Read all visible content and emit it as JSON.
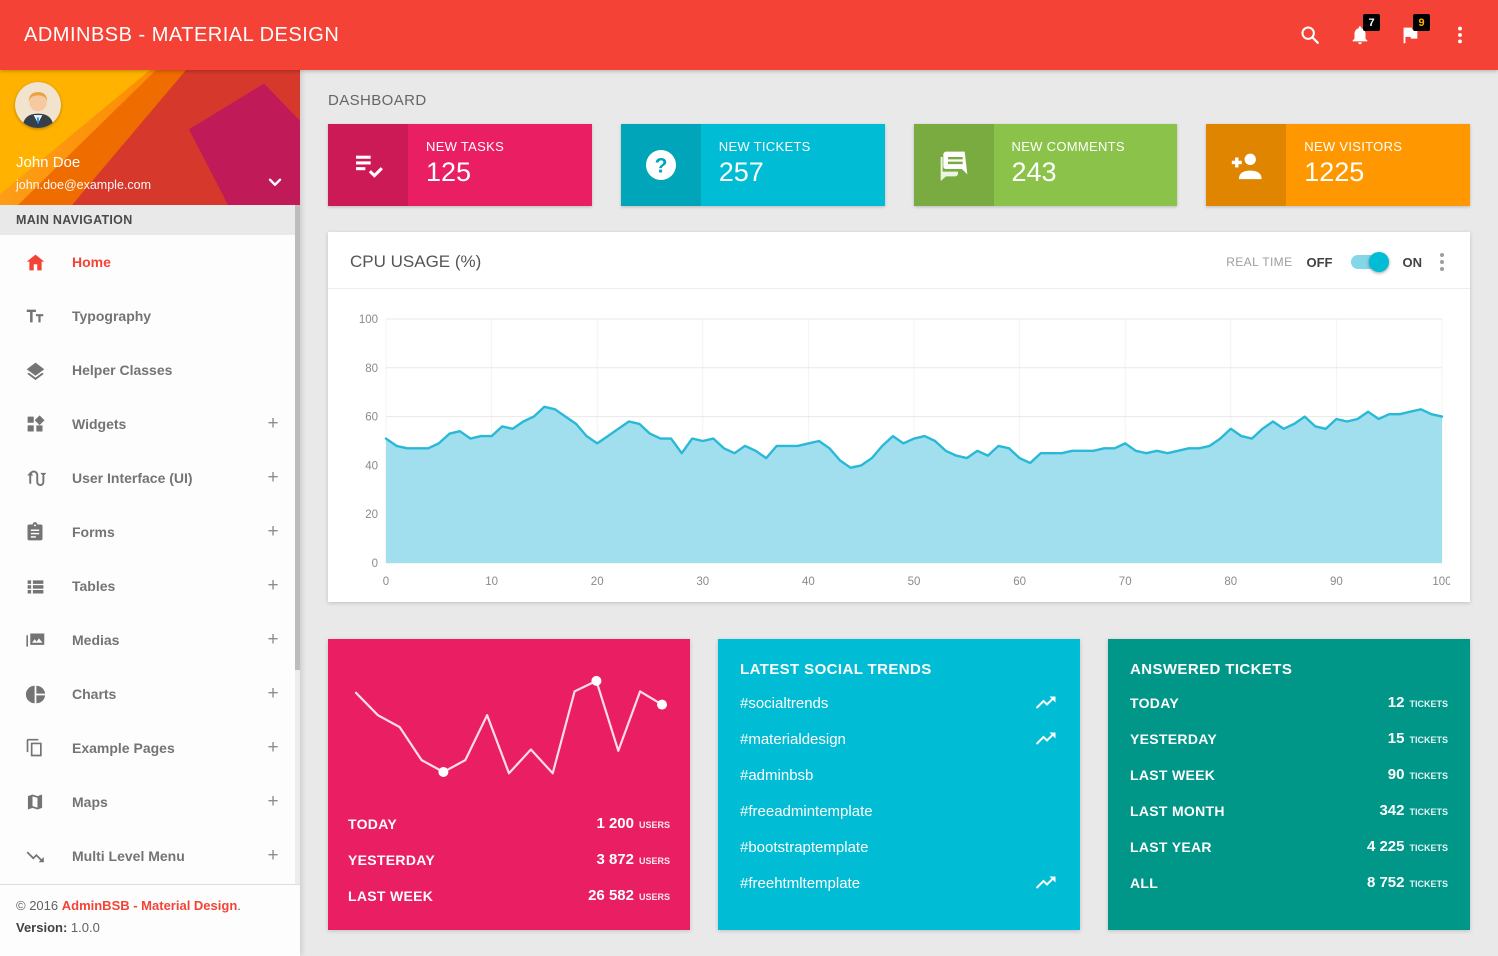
{
  "colors": {
    "header_red": "#F44336",
    "pink": "#E91E63",
    "cyan": "#00BCD4",
    "green": "#8BC34A",
    "orange": "#FF9800",
    "teal": "#009688",
    "chart_line": "#29B9D6",
    "chart_fill": "#A2DFEE",
    "badge_bg": "#000000",
    "badge_amber_text": "#FFB300"
  },
  "header": {
    "title": "ADMINBSB - MATERIAL DESIGN",
    "notifications_count": "7",
    "flags_count": "9",
    "icons": [
      "search-icon",
      "bell-icon",
      "flag-icon",
      "more-vert-icon"
    ]
  },
  "sidebar": {
    "user": {
      "name": "John Doe",
      "email": "john.doe@example.com"
    },
    "nav_header": "MAIN NAVIGATION",
    "plus": "+",
    "items": [
      {
        "label": "Home",
        "icon": "home-icon",
        "active": true,
        "expandable": false
      },
      {
        "label": "Typography",
        "icon": "typography-icon",
        "active": false,
        "expandable": false
      },
      {
        "label": "Helper Classes",
        "icon": "layers-icon",
        "active": false,
        "expandable": false
      },
      {
        "label": "Widgets",
        "icon": "widgets-icon",
        "active": false,
        "expandable": true
      },
      {
        "label": "User Interface (UI)",
        "icon": "swap-calls-icon",
        "active": false,
        "expandable": true
      },
      {
        "label": "Forms",
        "icon": "assignment-icon",
        "active": false,
        "expandable": true
      },
      {
        "label": "Tables",
        "icon": "list-icon",
        "active": false,
        "expandable": true
      },
      {
        "label": "Medias",
        "icon": "media-icon",
        "active": false,
        "expandable": true
      },
      {
        "label": "Charts",
        "icon": "pie-chart-icon",
        "active": false,
        "expandable": true
      },
      {
        "label": "Example Pages",
        "icon": "pages-icon",
        "active": false,
        "expandable": true
      },
      {
        "label": "Maps",
        "icon": "map-icon",
        "active": false,
        "expandable": true
      },
      {
        "label": "Multi Level Menu",
        "icon": "trending-down-icon",
        "active": false,
        "expandable": true
      }
    ],
    "footer": {
      "copyright_prefix": "© 2016 ",
      "copyright_link": "AdminBSB - Material Design",
      "copyright_suffix": ".",
      "version_label": "Version: ",
      "version_value": "1.0.0"
    }
  },
  "main": {
    "page_title": "DASHBOARD",
    "info_boxes": [
      {
        "label": "NEW TASKS",
        "value": "125",
        "color": "#E91E63",
        "icon": "playlist-check-icon"
      },
      {
        "label": "NEW TICKETS",
        "value": "257",
        "color": "#00BCD4",
        "icon": "help-icon"
      },
      {
        "label": "NEW COMMENTS",
        "value": "243",
        "color": "#8BC34A",
        "icon": "forum-icon"
      },
      {
        "label": "NEW VISITORS",
        "value": "1225",
        "color": "#FF9800",
        "icon": "person-add-icon"
      }
    ],
    "cpu_card": {
      "title": "CPU USAGE (%)",
      "realtime_label": "REAL TIME",
      "off_label": "OFF",
      "on_label": "ON",
      "toggle_state": "on"
    },
    "users_card": {
      "rows": [
        {
          "label": "TODAY",
          "value": "1 200",
          "unit": "USERS"
        },
        {
          "label": "YESTERDAY",
          "value": "3 872",
          "unit": "USERS"
        },
        {
          "label": "LAST WEEK",
          "value": "26 582",
          "unit": "USERS"
        }
      ]
    },
    "trends_card": {
      "title": "LATEST SOCIAL TRENDS",
      "items": [
        {
          "tag": "#socialtrends",
          "trending": true
        },
        {
          "tag": "#materialdesign",
          "trending": true
        },
        {
          "tag": "#adminbsb",
          "trending": false
        },
        {
          "tag": "#freeadmintemplate",
          "trending": false
        },
        {
          "tag": "#bootstraptemplate",
          "trending": false
        },
        {
          "tag": "#freehtmltemplate",
          "trending": true
        }
      ]
    },
    "tickets_card": {
      "title": "ANSWERED TICKETS",
      "rows": [
        {
          "label": "TODAY",
          "value": "12",
          "unit": "TICKETS"
        },
        {
          "label": "YESTERDAY",
          "value": "15",
          "unit": "TICKETS"
        },
        {
          "label": "LAST WEEK",
          "value": "90",
          "unit": "TICKETS"
        },
        {
          "label": "LAST MONTH",
          "value": "342",
          "unit": "TICKETS"
        },
        {
          "label": "LAST YEAR",
          "value": "4 225",
          "unit": "TICKETS"
        },
        {
          "label": "ALL",
          "value": "8 752",
          "unit": "TICKETS"
        }
      ]
    }
  },
  "chart_data": [
    {
      "type": "area",
      "title": "CPU USAGE (%)",
      "xlabel": "",
      "ylabel": "",
      "xlim": [
        0,
        100
      ],
      "ylim": [
        0,
        100
      ],
      "x_ticks": [
        0,
        10,
        20,
        30,
        40,
        50,
        60,
        70,
        80,
        90,
        100
      ],
      "y_ticks": [
        0,
        20,
        40,
        60,
        80,
        100
      ],
      "grid": true,
      "line_color": "#29B9D6",
      "fill_color": "#A2DFEE",
      "values": [
        51,
        48,
        47,
        47,
        47,
        49,
        53,
        54,
        51,
        52,
        52,
        56,
        55,
        58,
        60,
        64,
        63,
        60,
        57,
        52,
        49,
        52,
        55,
        58,
        57,
        53,
        51,
        51,
        45,
        51,
        50,
        51,
        47,
        45,
        48,
        46,
        43,
        48,
        48,
        48,
        49,
        50,
        47,
        42,
        39,
        40,
        43,
        48,
        52,
        49,
        51,
        52,
        50,
        46,
        44,
        43,
        46,
        44,
        48,
        47,
        43,
        41,
        45,
        45,
        45,
        46,
        46,
        46,
        47,
        47,
        49,
        46,
        45,
        46,
        45,
        46,
        47,
        47,
        48,
        51,
        55,
        52,
        51,
        55,
        58,
        55,
        57,
        60,
        56,
        55,
        59,
        58,
        59,
        62,
        59,
        61,
        61,
        62,
        63,
        61,
        60
      ]
    },
    {
      "type": "line",
      "title": "Visitors sparkline",
      "line_color": "#FFFFFF",
      "values": [
        82,
        65,
        56,
        31,
        22,
        31,
        65,
        21,
        39,
        21,
        83,
        91,
        38,
        83,
        73
      ],
      "dot_indices": [
        4,
        11,
        14
      ]
    }
  ]
}
